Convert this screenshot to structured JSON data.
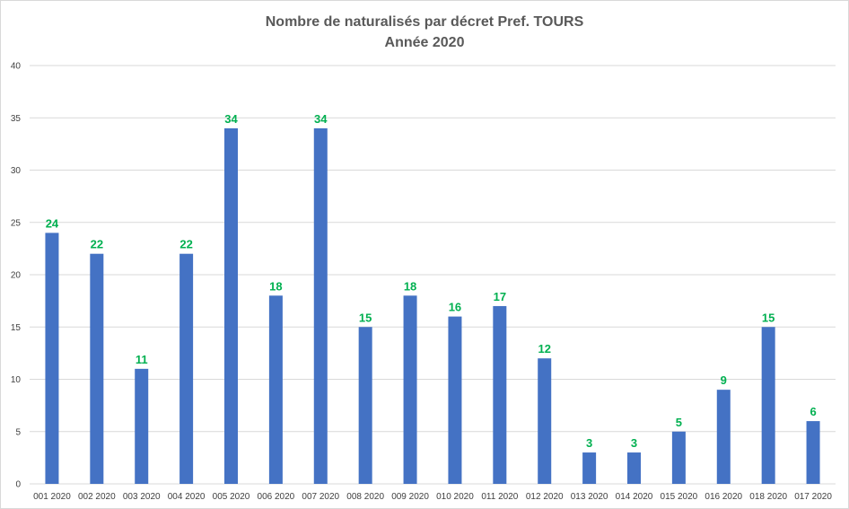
{
  "chart_data": {
    "type": "bar",
    "title": "Nombre de naturalisés par décret Pref. TOURS",
    "subtitle": "Année 2020",
    "xlabel": "",
    "ylabel": "",
    "ylim": [
      0,
      40
    ],
    "yticks": [
      0,
      5,
      10,
      15,
      20,
      25,
      30,
      35,
      40
    ],
    "grid": true,
    "legend": "none",
    "categories": [
      "001 2020",
      "002 2020",
      "003 2020",
      "004 2020",
      "005 2020",
      "006 2020",
      "007 2020",
      "008 2020",
      "009 2020",
      "010 2020",
      "011 2020",
      "012 2020",
      "013 2020",
      "014 2020",
      "015 2020",
      "016 2020",
      "018 2020",
      "017 2020"
    ],
    "values": [
      24,
      22,
      11,
      22,
      34,
      18,
      34,
      15,
      18,
      16,
      17,
      12,
      3,
      3,
      5,
      9,
      15,
      6
    ],
    "colors": {
      "bar": "#4472c4",
      "data_label": "#00b050",
      "grid": "#d9d9d9",
      "title": "#595959",
      "axis_text": "#404040"
    }
  }
}
